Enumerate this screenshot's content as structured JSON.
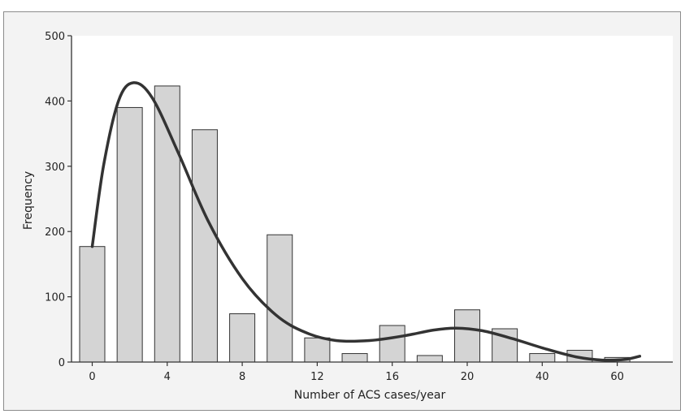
{
  "chart_data": {
    "type": "bar",
    "title": "",
    "xlabel": "Number of ACS cases/year",
    "ylabel": "Frequency",
    "ylim": [
      0,
      500
    ],
    "yticks": [
      "0",
      "100",
      "200",
      "300",
      "400",
      "500"
    ],
    "xticks": [
      {
        "label": "0",
        "at": 0
      },
      {
        "label": "4",
        "at": 2
      },
      {
        "label": "8",
        "at": 4
      },
      {
        "label": "12",
        "at": 6
      },
      {
        "label": "16",
        "at": 8
      },
      {
        "label": "20",
        "at": 10
      },
      {
        "label": "40",
        "at": 12
      },
      {
        "label": "60",
        "at": 14
      }
    ],
    "values": [
      177,
      390,
      423,
      356,
      74,
      195,
      37,
      13,
      56,
      10,
      80,
      51,
      13,
      18,
      7
    ],
    "smoothed_curve": [
      {
        "bin": 0,
        "value": 177
      },
      {
        "bin": 0.3,
        "value": 300
      },
      {
        "bin": 0.7,
        "value": 400
      },
      {
        "bin": 1.1,
        "value": 428
      },
      {
        "bin": 1.6,
        "value": 405
      },
      {
        "bin": 2.3,
        "value": 320
      },
      {
        "bin": 3.1,
        "value": 215
      },
      {
        "bin": 4,
        "value": 128
      },
      {
        "bin": 4.9,
        "value": 72
      },
      {
        "bin": 5.7,
        "value": 45
      },
      {
        "bin": 6.5,
        "value": 33
      },
      {
        "bin": 7.4,
        "value": 33
      },
      {
        "bin": 8.3,
        "value": 40
      },
      {
        "bin": 9.1,
        "value": 49
      },
      {
        "bin": 9.7,
        "value": 52
      },
      {
        "bin": 10.4,
        "value": 48
      },
      {
        "bin": 11.2,
        "value": 36
      },
      {
        "bin": 12.1,
        "value": 20
      },
      {
        "bin": 12.9,
        "value": 8
      },
      {
        "bin": 13.6,
        "value": 3
      },
      {
        "bin": 14.2,
        "value": 4
      },
      {
        "bin": 14.6,
        "value": 9
      }
    ],
    "grid": false,
    "colors": {
      "bar_fill": "#d4d4d4",
      "bar_stroke": "#333333",
      "curve": "#333333",
      "background": "#f3f3f3",
      "plot_area": "#ffffff"
    }
  }
}
